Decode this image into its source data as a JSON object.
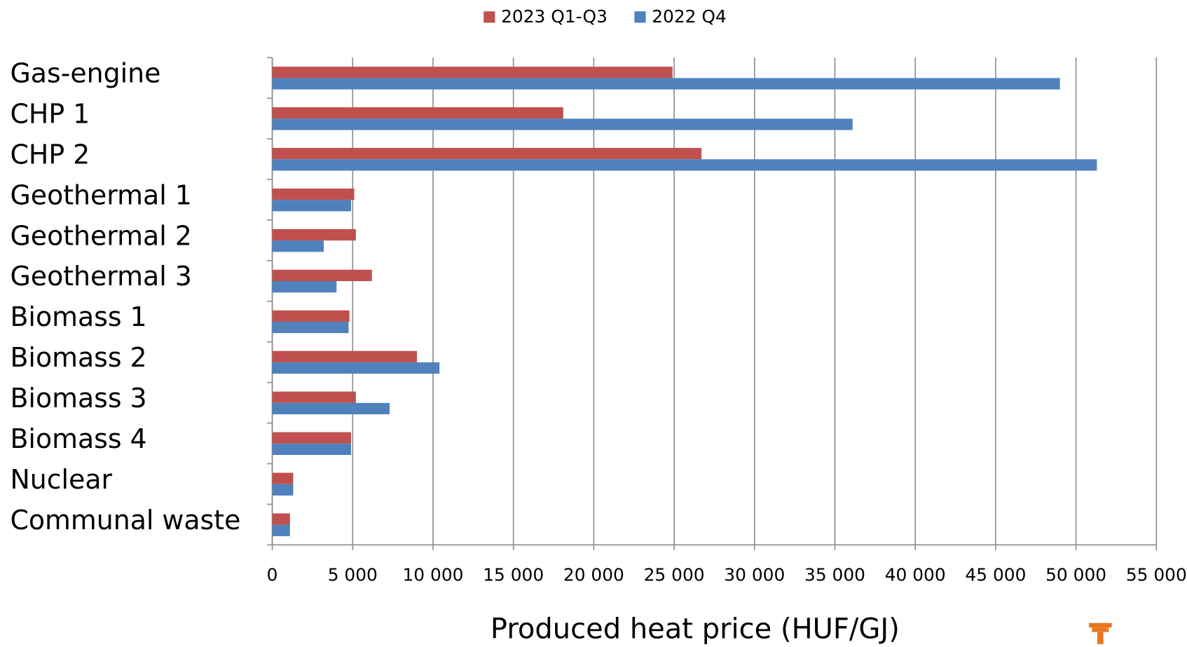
{
  "chart_data": {
    "type": "bar",
    "orientation": "horizontal",
    "x_label": "Produced heat price (HUF/GJ)",
    "categories": [
      "Gas-engine",
      "CHP 1",
      "CHP 2",
      "Geothermal 1",
      "Geothermal 2",
      "Geothermal 3",
      "Biomass 1",
      "Biomass 2",
      "Biomass 3",
      "Biomass 4",
      "Nuclear",
      "Communal waste"
    ],
    "series": [
      {
        "name": "2023 Q1-Q3",
        "color": "#c0504d",
        "values": [
          24900,
          18100,
          26700,
          5100,
          5200,
          6200,
          4800,
          9000,
          5200,
          4900,
          1300,
          1100
        ]
      },
      {
        "name": "2022 Q4",
        "color": "#4f81bd",
        "values": [
          49000,
          36100,
          51300,
          4900,
          3200,
          4000,
          4750,
          10400,
          7300,
          4900,
          1300,
          1100
        ]
      }
    ],
    "xlim": [
      0,
      55000
    ],
    "xticks": [
      0,
      {
        "value": 5000,
        "label": "5 000"
      },
      {
        "value": 10000,
        "label": "10 000"
      },
      {
        "value": 15000,
        "label": "15 000"
      },
      {
        "value": 20000,
        "label": "20 000"
      },
      {
        "value": 25000,
        "label": "25 000"
      },
      {
        "value": 30000,
        "label": "30 000"
      },
      {
        "value": 35000,
        "label": "35 000"
      },
      {
        "value": 40000,
        "label": "40 000"
      },
      {
        "value": 45000,
        "label": "45 000"
      },
      {
        "value": 50000,
        "label": "50 000"
      },
      {
        "value": 55000,
        "label": "55 000"
      }
    ],
    "grid": true,
    "legend": "top"
  }
}
